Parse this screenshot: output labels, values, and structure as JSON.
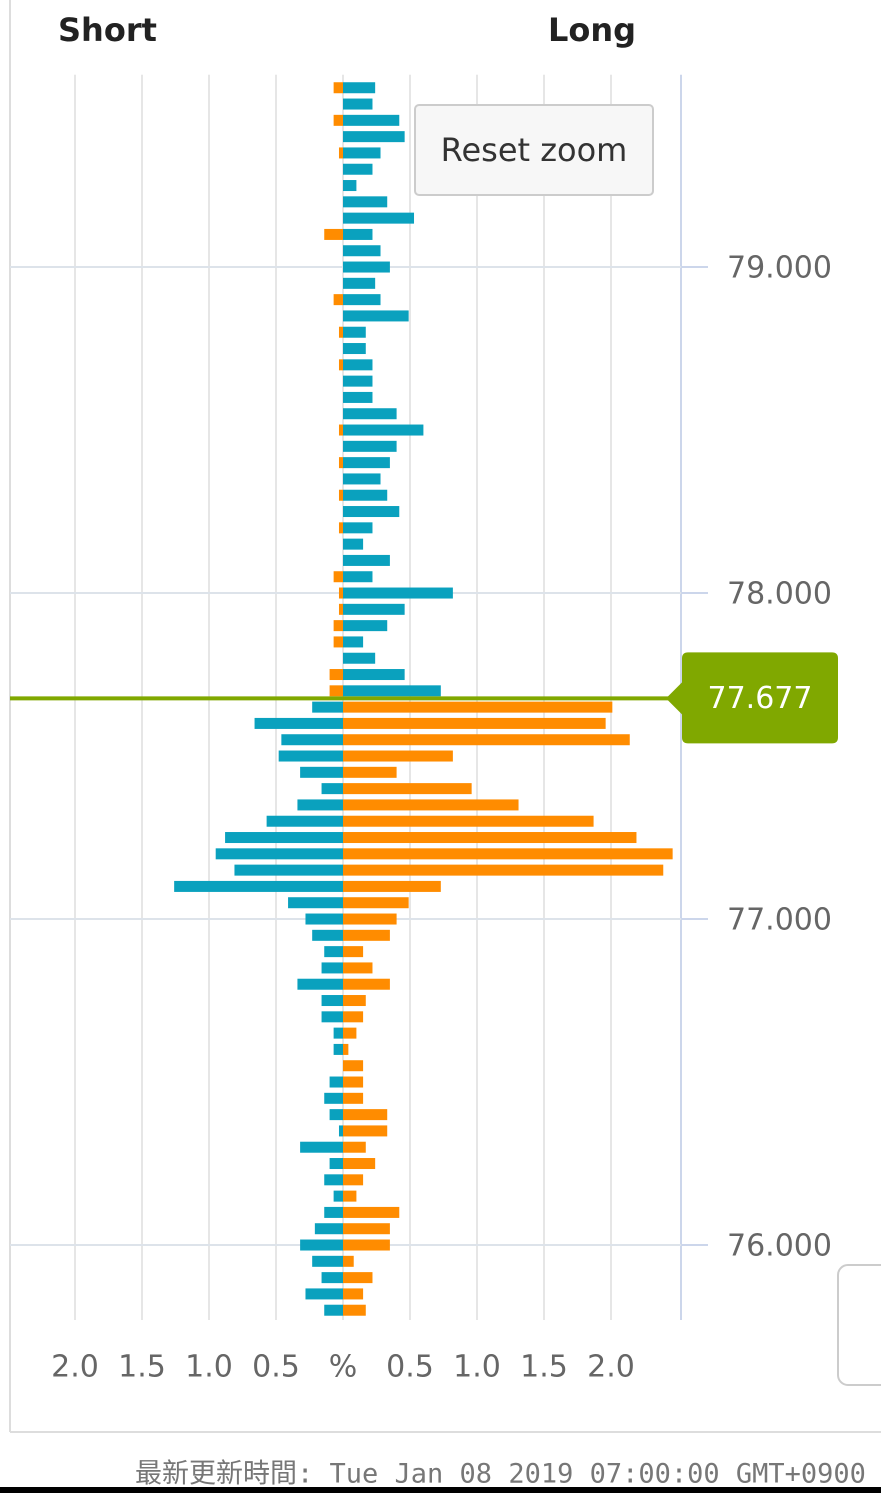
{
  "chart_data": {
    "type": "bar",
    "orientation": "horizontal",
    "categories": [
      79.55,
      79.5,
      79.45,
      79.4,
      79.35,
      79.3,
      79.25,
      79.2,
      79.15,
      79.1,
      79.05,
      79,
      78.95,
      78.9,
      78.85,
      78.8,
      78.75,
      78.7,
      78.65,
      78.6,
      78.55,
      78.5,
      78.45,
      78.4,
      78.35,
      78.3,
      78.25,
      78.2,
      78.15,
      78.1,
      78.05,
      78,
      77.95,
      77.9,
      77.85,
      77.8,
      77.75,
      77.7,
      77.65,
      77.6,
      77.55,
      77.5,
      77.45,
      77.4,
      77.35,
      77.3,
      77.25,
      77.2,
      77.15,
      77.1,
      77.05,
      77,
      76.95,
      76.9,
      76.85,
      76.8,
      76.75,
      76.7,
      76.65,
      76.6,
      76.55,
      76.5,
      76.45,
      76.4,
      76.35,
      76.3,
      76.25,
      76.2,
      76.15,
      76.1,
      76.05,
      76,
      75.95,
      75.9,
      75.85,
      75.8
    ],
    "series": [
      {
        "name": "Short",
        "side": "left",
        "color_above": "#ff8c00",
        "color_below": "#0aa1be",
        "values": [
          0.07,
          0,
          0.07,
          0,
          0.03,
          0,
          0,
          0,
          0,
          0.14,
          0,
          0,
          0,
          0.07,
          0,
          0.03,
          0,
          0.03,
          0,
          0,
          0,
          0.03,
          0,
          0.03,
          0,
          0.03,
          0,
          0.03,
          0,
          0,
          0.07,
          0.03,
          0.03,
          0.07,
          0.07,
          0,
          0.1,
          0.1,
          0.23,
          0.66,
          0.46,
          0.48,
          0.32,
          0.16,
          0.34,
          0.57,
          0.88,
          0.95,
          0.81,
          1.26,
          0.41,
          0.28,
          0.23,
          0.14,
          0.16,
          0.34,
          0.16,
          0.16,
          0.07,
          0.07,
          0,
          0.1,
          0.14,
          0.1,
          0.03,
          0.32,
          0.1,
          0.14,
          0.07,
          0.14,
          0.21,
          0.32,
          0.23,
          0.16,
          0.28,
          0.14
        ]
      },
      {
        "name": "Long",
        "side": "right",
        "color_above": "#0aa1be",
        "color_below": "#ff8c00",
        "values": [
          0.24,
          0.22,
          0.42,
          0.46,
          0.28,
          0.22,
          0.1,
          0.33,
          0.53,
          0.22,
          0.28,
          0.35,
          0.24,
          0.28,
          0.49,
          0.17,
          0.17,
          0.22,
          0.22,
          0.22,
          0.4,
          0.6,
          0.4,
          0.35,
          0.28,
          0.33,
          0.42,
          0.22,
          0.15,
          0.35,
          0.22,
          0.82,
          0.46,
          0.33,
          0.15,
          0.24,
          0.46,
          0.73,
          2.01,
          1.96,
          2.14,
          0.82,
          0.4,
          0.96,
          1.31,
          1.87,
          2.19,
          2.46,
          2.39,
          0.73,
          0.49,
          0.4,
          0.35,
          0.15,
          0.22,
          0.35,
          0.17,
          0.15,
          0.1,
          0.04,
          0.15,
          0.15,
          0.15,
          0.33,
          0.33,
          0.17,
          0.24,
          0.15,
          0.1,
          0.42,
          0.35,
          0.35,
          0.08,
          0.22,
          0.15,
          0.17
        ]
      }
    ],
    "xlim": [
      -2.5,
      2.5
    ],
    "xticks": [
      {
        "value": -2,
        "label": "2.0"
      },
      {
        "value": -1.5,
        "label": "1.5"
      },
      {
        "value": -1,
        "label": "1.0"
      },
      {
        "value": -0.5,
        "label": "0.5"
      },
      {
        "value": 0,
        "label": "%"
      },
      {
        "value": 0.5,
        "label": "0.5"
      },
      {
        "value": 1,
        "label": "1.0"
      },
      {
        "value": 1.5,
        "label": "1.5"
      },
      {
        "value": 2,
        "label": "2.0"
      }
    ],
    "ylim": [
      75.77,
      79.59
    ],
    "yticks": [
      {
        "value": 79,
        "label": "79.000"
      },
      {
        "value": 78,
        "label": "78.000"
      },
      {
        "value": 77,
        "label": "77.000"
      },
      {
        "value": 76,
        "label": "76.000"
      }
    ],
    "current_price": {
      "value": 77.677,
      "label": "77.677"
    },
    "current_price_color": "#80a800",
    "grid": true,
    "reset_button": "Reset zoom",
    "footer": "最新更新時間: Tue Jan 08 2019 07:00:00 GMT+0900"
  }
}
